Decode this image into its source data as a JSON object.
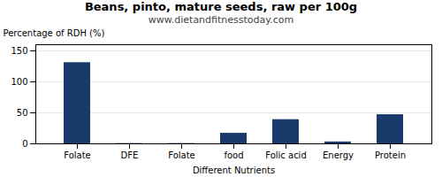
{
  "chart_data": {
    "type": "bar",
    "title": "Beans, pinto, mature seeds, raw per 100g",
    "subtitle": "www.dietandfitnesstoday.com",
    "xlabel": "Different Nutrients",
    "ylabel": "Percentage of RDH (%)",
    "categories": [
      "Folate",
      "DFE",
      "Folate",
      "food",
      "Folic acid",
      "Energy",
      "Protein"
    ],
    "values": [
      131,
      0.5,
      0.5,
      17,
      39,
      3,
      47
    ],
    "color": "#1a3a6b",
    "ylim": [
      0,
      160
    ],
    "yticks": [
      0,
      50,
      100,
      150
    ],
    "grid": true
  }
}
